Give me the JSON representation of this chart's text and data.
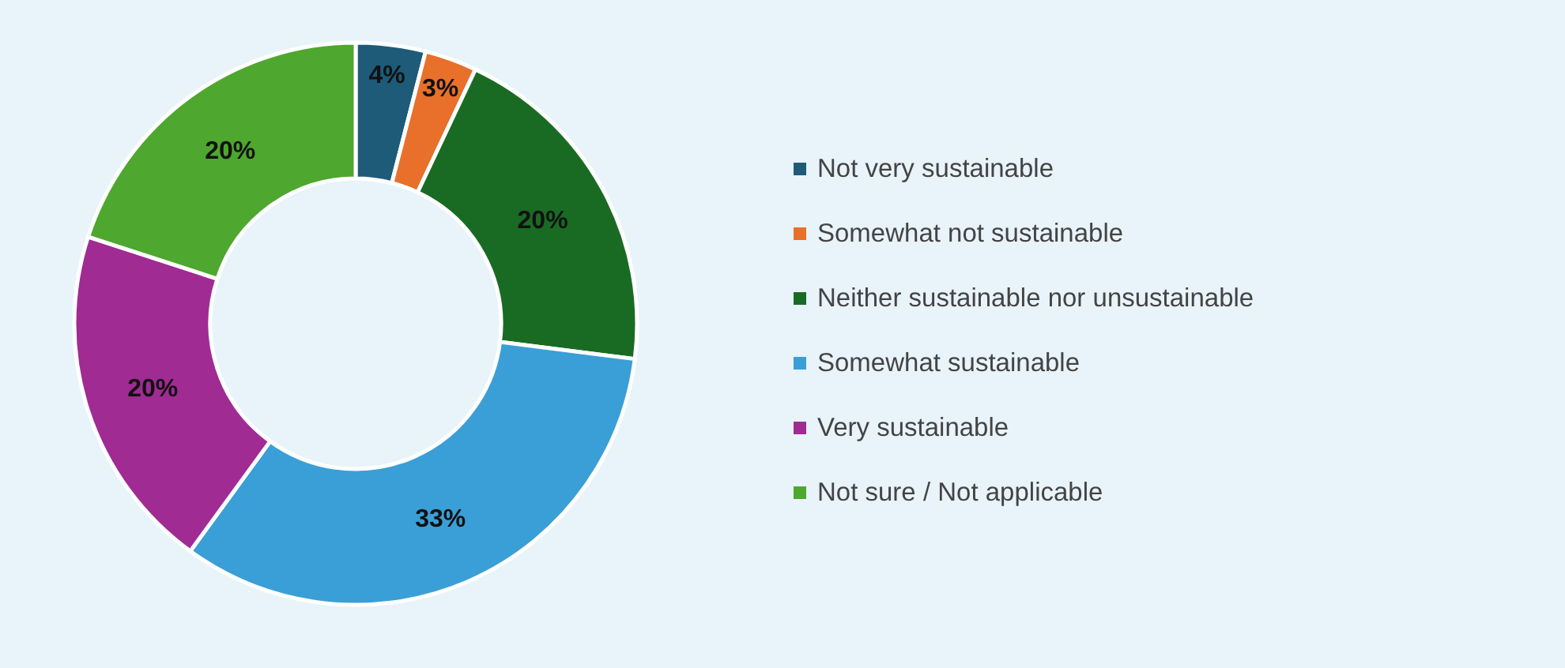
{
  "chart_data": {
    "type": "donut",
    "categories": [
      "Not very sustainable",
      "Somewhat not sustainable",
      "Neither sustainable nor unsustainable",
      "Somewhat sustainable",
      "Very sustainable",
      "Not sure / Not applicable"
    ],
    "values": [
      4,
      3,
      20,
      33,
      20,
      20
    ],
    "colors": [
      "#1d5b79",
      "#e8702a",
      "#196b24",
      "#3a9fd6",
      "#a02b93",
      "#4ea72e"
    ],
    "value_labels": [
      "4%",
      "3%",
      "20%",
      "33%",
      "20%",
      "20%"
    ],
    "legend": "right"
  }
}
